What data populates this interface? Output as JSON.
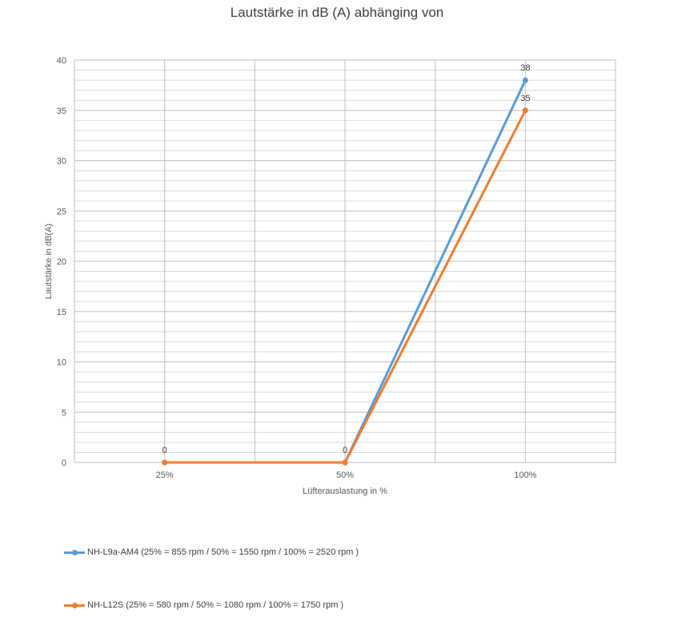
{
  "chart_data": {
    "type": "line",
    "title": "Lautstärke in dB (A) abhänging von",
    "xlabel": "Lüfterauslastung in %",
    "ylabel": "Lautstärke in dB(A)",
    "categories": [
      "25%",
      "50%",
      "100%"
    ],
    "ylim": [
      0,
      40
    ],
    "yticks": [
      0,
      5,
      10,
      15,
      20,
      25,
      30,
      35,
      40
    ],
    "grid": true,
    "legend_position": "bottom-left",
    "series": [
      {
        "name": "NH-L9a-AM4 (25% = 855 rpm / 50% = 1550 rpm / 100% = 2520 rpm )",
        "color": "#5B9BD5",
        "values": [
          0,
          0,
          38
        ],
        "data_labels": [
          "0",
          "0",
          "38"
        ]
      },
      {
        "name": "NH-L12S (25% = 580 rpm / 50% = 1080 rpm / 100% = 1750 rpm )",
        "color": "#ED7D31",
        "values": [
          0,
          0,
          35
        ],
        "data_labels": [
          "",
          "",
          "35"
        ]
      }
    ]
  }
}
